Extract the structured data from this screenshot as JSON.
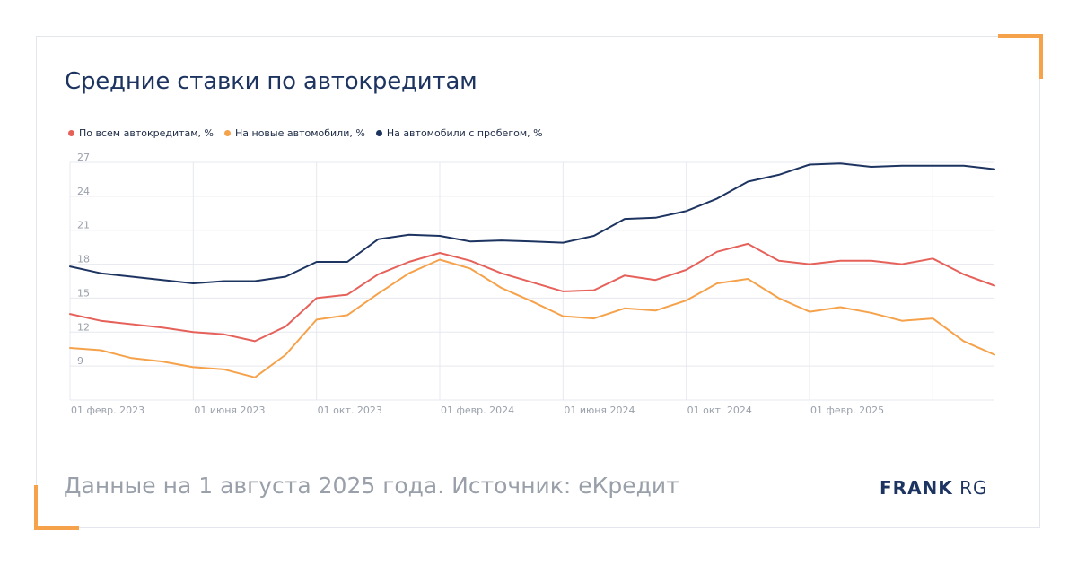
{
  "title": "Средние ставки по автокредитам",
  "footer": "Данные на 1 августа 2025 года. Источник: еКредит",
  "brand": {
    "bold": "FRANK",
    "light": "RG"
  },
  "colors": {
    "accent": "#f5a24b",
    "brand": "#1d3461"
  },
  "chart_data": {
    "type": "line",
    "title": "Средние ставки по автокредитам",
    "ylim": [
      6,
      27
    ],
    "yticks": [
      9,
      12,
      15,
      18,
      21,
      24,
      27
    ],
    "x_tick_labels": [
      {
        "index": 0,
        "label": "01 февр. 2023"
      },
      {
        "index": 4,
        "label": "01 июня 2023"
      },
      {
        "index": 8,
        "label": "01 окт. 2023"
      },
      {
        "index": 12,
        "label": "01 февр. 2024"
      },
      {
        "index": 16,
        "label": "01 июня 2024"
      },
      {
        "index": 20,
        "label": "01 окт. 2024"
      },
      {
        "index": 24,
        "label": "01 февр. 2025"
      },
      {
        "index": 28,
        "label": ""
      }
    ],
    "x_points": 31,
    "grid": true,
    "legend_position": "top-left",
    "series": [
      {
        "name": "По всем автокредитам, %",
        "color": "#e5615a",
        "values": [
          13.6,
          13.0,
          12.7,
          12.4,
          12.0,
          11.8,
          11.2,
          12.5,
          15.0,
          15.3,
          17.1,
          18.2,
          19.0,
          18.3,
          17.2,
          16.4,
          15.6,
          15.7,
          17.0,
          16.6,
          17.5,
          19.1,
          19.8,
          18.3,
          18.0,
          18.3,
          18.3,
          18.0,
          18.5,
          17.1,
          16.1
        ]
      },
      {
        "name": "На новые автомобили, %",
        "color": "#f5a24b",
        "values": [
          10.6,
          10.4,
          9.7,
          9.4,
          8.9,
          8.7,
          8.0,
          10.0,
          13.1,
          13.5,
          15.4,
          17.2,
          18.4,
          17.6,
          15.9,
          14.7,
          13.4,
          13.2,
          14.1,
          13.9,
          14.8,
          16.3,
          16.7,
          15.0,
          13.8,
          14.2,
          13.7,
          13.0,
          13.2,
          11.2,
          10.0
        ]
      },
      {
        "name": "На автомобили с пробегом, %",
        "color": "#1d3461",
        "values": [
          17.8,
          17.2,
          16.9,
          16.6,
          16.3,
          16.5,
          16.5,
          16.9,
          18.2,
          18.2,
          20.2,
          20.6,
          20.5,
          20.0,
          20.1,
          20.0,
          19.9,
          20.5,
          22.0,
          22.1,
          22.7,
          23.8,
          25.3,
          25.9,
          26.8,
          26.9,
          26.6,
          26.7,
          26.7,
          26.7,
          26.4
        ]
      }
    ]
  }
}
